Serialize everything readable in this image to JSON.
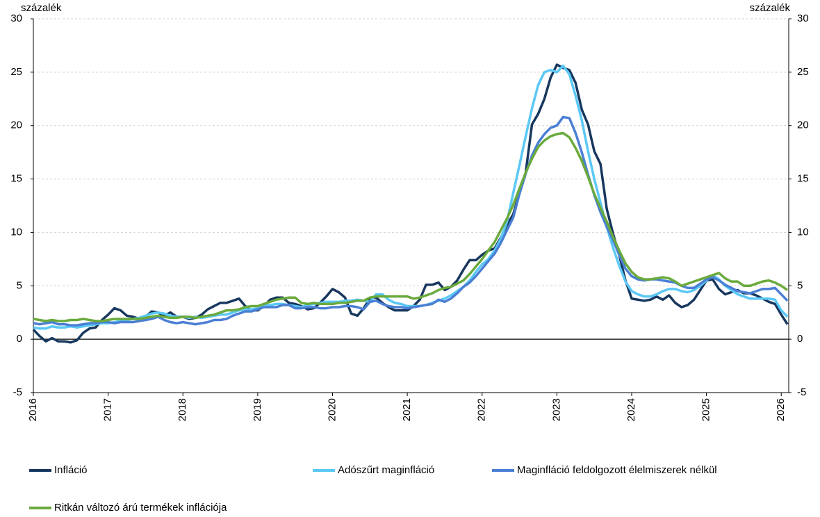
{
  "chart_data": {
    "type": "line",
    "y_label": "százalék",
    "y2_label": "százalék",
    "x": [
      2016,
      2016.083,
      2016.167,
      2016.25,
      2016.333,
      2016.417,
      2016.5,
      2016.583,
      2016.667,
      2016.75,
      2016.833,
      2016.917,
      2017,
      2017.083,
      2017.167,
      2017.25,
      2017.333,
      2017.417,
      2017.5,
      2017.583,
      2017.667,
      2017.75,
      2017.833,
      2017.917,
      2018,
      2018.083,
      2018.167,
      2018.25,
      2018.333,
      2018.417,
      2018.5,
      2018.583,
      2018.667,
      2018.75,
      2018.833,
      2018.917,
      2019,
      2019.083,
      2019.167,
      2019.25,
      2019.333,
      2019.417,
      2019.5,
      2019.583,
      2019.667,
      2019.75,
      2019.833,
      2019.917,
      2020,
      2020.083,
      2020.167,
      2020.25,
      2020.333,
      2020.417,
      2020.5,
      2020.583,
      2020.667,
      2020.75,
      2020.833,
      2020.917,
      2021,
      2021.083,
      2021.167,
      2021.25,
      2021.333,
      2021.417,
      2021.5,
      2021.583,
      2021.667,
      2021.75,
      2021.833,
      2021.917,
      2022,
      2022.083,
      2022.167,
      2022.25,
      2022.333,
      2022.417,
      2022.5,
      2022.583,
      2022.667,
      2022.75,
      2022.833,
      2022.917,
      2023,
      2023.083,
      2023.167,
      2023.25,
      2023.333,
      2023.417,
      2023.5,
      2023.583,
      2023.667,
      2023.75,
      2023.833,
      2023.917,
      2024,
      2024.083,
      2024.167,
      2024.25,
      2024.333,
      2024.417,
      2024.5,
      2024.583,
      2024.667,
      2024.75,
      2024.833,
      2024.917,
      2025,
      2025.083,
      2025.167,
      2025.25,
      2025.333,
      2025.417,
      2025.5,
      2025.583,
      2025.667,
      2025.75,
      2025.833,
      2025.917,
      2026,
      2026.083
    ],
    "series": [
      {
        "name": "Infláció",
        "color": "#17375e",
        "values": [
          0.9,
          0.3,
          -0.2,
          0.1,
          -0.2,
          -0.2,
          -0.3,
          -0.1,
          0.6,
          1.0,
          1.1,
          1.8,
          2.3,
          2.9,
          2.7,
          2.2,
          2.1,
          1.9,
          2.1,
          2.6,
          2.5,
          2.2,
          2.5,
          2.1,
          2.1,
          1.9,
          2.0,
          2.3,
          2.8,
          3.1,
          3.4,
          3.4,
          3.6,
          3.8,
          3.1,
          2.7,
          2.7,
          3.1,
          3.7,
          3.9,
          3.9,
          3.4,
          3.3,
          3.1,
          2.8,
          2.9,
          3.4,
          4.0,
          4.7,
          4.4,
          3.9,
          2.4,
          2.2,
          2.9,
          3.8,
          3.9,
          3.4,
          3.0,
          2.7,
          2.7,
          2.7,
          3.1,
          3.7,
          5.1,
          5.1,
          5.3,
          4.6,
          4.9,
          5.5,
          6.5,
          7.4,
          7.4,
          7.9,
          8.3,
          8.5,
          9.5,
          10.7,
          11.7,
          13.7,
          15.6,
          20.1,
          21.1,
          22.5,
          24.5,
          25.7,
          25.4,
          25.2,
          24.0,
          21.5,
          20.1,
          17.6,
          16.4,
          12.2,
          9.9,
          7.9,
          5.5,
          3.8,
          3.7,
          3.6,
          3.7,
          4.0,
          3.7,
          4.1,
          3.4,
          3.0,
          3.2,
          3.7,
          4.6,
          5.5,
          5.6,
          4.7,
          4.2,
          4.4,
          4.6,
          4.3,
          4.3,
          4.1,
          3.8,
          3.5,
          3.3,
          2.3,
          1.4
        ]
      },
      {
        "name": "Adószűrt maginfláció",
        "color": "#5bc8f5",
        "values": [
          1.1,
          1.0,
          1.0,
          1.2,
          1.1,
          1.1,
          1.2,
          1.1,
          1.2,
          1.3,
          1.4,
          1.5,
          1.5,
          1.6,
          1.7,
          1.8,
          1.9,
          2.0,
          2.2,
          2.4,
          2.5,
          2.4,
          2.2,
          2.1,
          2.1,
          2.0,
          2.1,
          2.0,
          2.1,
          2.2,
          2.3,
          2.3,
          2.5,
          2.7,
          2.8,
          2.8,
          2.9,
          3.1,
          3.2,
          3.3,
          3.3,
          3.2,
          3.1,
          3.0,
          3.2,
          3.3,
          3.4,
          3.5,
          3.5,
          3.5,
          3.6,
          3.6,
          3.7,
          3.6,
          3.5,
          4.2,
          4.2,
          3.7,
          3.4,
          3.3,
          3.1,
          3.1,
          3.1,
          3.2,
          3.4,
          3.6,
          3.8,
          4.1,
          4.5,
          4.9,
          5.5,
          6.3,
          7.0,
          7.5,
          8.3,
          9.4,
          11.0,
          13.7,
          16.3,
          19.0,
          21.6,
          23.8,
          25.0,
          25.2,
          25.0,
          25.6,
          24.8,
          22.8,
          20.5,
          17.6,
          15.0,
          12.8,
          10.5,
          8.6,
          6.9,
          5.4,
          4.5,
          4.2,
          4.0,
          4.0,
          4.2,
          4.5,
          4.7,
          4.7,
          4.5,
          4.4,
          4.6,
          5.0,
          5.5,
          6.0,
          5.6,
          5.0,
          4.6,
          4.2,
          4.0,
          3.8,
          3.8,
          3.8,
          3.8,
          3.7,
          2.7,
          2.1
        ]
      },
      {
        "name": "Maginfláció feldolgozott élelmiszerek nélkül",
        "color": "#4a7fd4",
        "values": [
          1.5,
          1.4,
          1.5,
          1.6,
          1.4,
          1.4,
          1.3,
          1.3,
          1.4,
          1.5,
          1.5,
          1.6,
          1.6,
          1.5,
          1.6,
          1.6,
          1.6,
          1.7,
          1.8,
          1.9,
          2.1,
          1.8,
          1.6,
          1.5,
          1.6,
          1.5,
          1.4,
          1.5,
          1.6,
          1.8,
          1.8,
          1.9,
          2.2,
          2.4,
          2.6,
          2.6,
          2.8,
          3.0,
          3.0,
          3.0,
          3.2,
          3.2,
          2.9,
          2.9,
          3.0,
          3.0,
          2.9,
          2.9,
          3.0,
          3.0,
          3.1,
          3.1,
          3.0,
          2.8,
          3.5,
          3.6,
          3.3,
          3.1,
          3.0,
          3.0,
          2.9,
          3.0,
          3.1,
          3.2,
          3.3,
          3.7,
          3.5,
          3.8,
          4.3,
          4.9,
          5.3,
          5.9,
          6.6,
          7.3,
          8.0,
          9.0,
          10.2,
          11.4,
          13.6,
          15.5,
          17.2,
          18.4,
          19.2,
          19.8,
          20.0,
          20.8,
          20.7,
          19.3,
          17.5,
          15.4,
          13.5,
          11.9,
          10.5,
          9.3,
          7.9,
          6.6,
          5.9,
          5.6,
          5.5,
          5.6,
          5.6,
          5.5,
          5.4,
          5.3,
          5.0,
          4.8,
          4.8,
          5.2,
          5.6,
          5.8,
          5.5,
          5.1,
          4.8,
          4.5,
          4.4,
          4.3,
          4.5,
          4.7,
          4.7,
          4.8,
          4.2,
          3.6
        ]
      },
      {
        "name": "Ritkán változó árú termékek inflációja",
        "color": "#6aaa3c",
        "values": [
          1.9,
          1.8,
          1.7,
          1.8,
          1.7,
          1.7,
          1.8,
          1.8,
          1.9,
          1.8,
          1.7,
          1.7,
          1.8,
          1.9,
          1.9,
          1.9,
          1.9,
          1.9,
          2.0,
          2.1,
          2.2,
          2.1,
          2.0,
          2.0,
          2.1,
          2.1,
          2.0,
          2.1,
          2.2,
          2.3,
          2.5,
          2.7,
          2.7,
          2.8,
          3.0,
          3.1,
          3.1,
          3.3,
          3.5,
          3.7,
          3.8,
          3.9,
          3.9,
          3.4,
          3.3,
          3.4,
          3.3,
          3.3,
          3.3,
          3.4,
          3.4,
          3.5,
          3.6,
          3.6,
          3.9,
          4.0,
          4.0,
          4.0,
          4.0,
          4.0,
          4.0,
          3.8,
          3.9,
          4.1,
          4.3,
          4.6,
          4.8,
          4.9,
          5.2,
          5.5,
          6.1,
          6.8,
          7.5,
          8.3,
          9.1,
          10.2,
          11.3,
          12.6,
          14.1,
          15.6,
          16.9,
          18.0,
          18.6,
          19.0,
          19.2,
          19.3,
          18.9,
          17.9,
          16.7,
          15.2,
          13.6,
          12.3,
          11.0,
          9.6,
          8.3,
          7.1,
          6.3,
          5.8,
          5.6,
          5.6,
          5.7,
          5.8,
          5.7,
          5.4,
          5.0,
          5.2,
          5.4,
          5.6,
          5.8,
          6.0,
          6.2,
          5.7,
          5.4,
          5.4,
          5.0,
          5.0,
          5.2,
          5.4,
          5.5,
          5.3,
          5.0,
          4.6
        ]
      }
    ],
    "xlim": [
      2016,
      2026.1
    ],
    "xticks": [
      2016,
      2017,
      2018,
      2019,
      2020,
      2021,
      2022,
      2023,
      2024,
      2025,
      2026
    ],
    "ylim": [
      -5,
      30
    ],
    "yticks": [
      -5,
      0,
      5,
      10,
      15,
      20,
      25,
      30
    ],
    "y2lim": [
      -5,
      30
    ],
    "y2ticks": [
      -5,
      0,
      5,
      10,
      15,
      20,
      25,
      30
    ],
    "grid": true
  }
}
